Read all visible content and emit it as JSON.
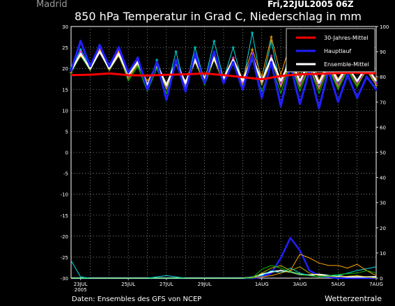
{
  "chart_data": {
    "type": "line",
    "location": "Madrid",
    "date_label": "Fri,22JUL2005 06Z",
    "title": "850 hPa Temperatur in Grad C, Niederschlag in mm",
    "footer_left": "Daten: Ensembles des GFS von NCEP",
    "footer_right": "Wetterzentrale",
    "x_range": [
      0,
      16
    ],
    "x_ticks": [
      {
        "x": 0.5,
        "label": "23JUL",
        "sub": "2005"
      },
      {
        "x": 3,
        "label": "25JUL",
        "sub": ""
      },
      {
        "x": 5,
        "label": "27JUL",
        "sub": ""
      },
      {
        "x": 7,
        "label": "29JUL",
        "sub": ""
      },
      {
        "x": 10,
        "label": "1AUG",
        "sub": ""
      },
      {
        "x": 12,
        "label": "3AUG",
        "sub": ""
      },
      {
        "x": 14,
        "label": "5AUG",
        "sub": ""
      },
      {
        "x": 16,
        "label": "7AUG",
        "sub": ""
      }
    ],
    "y_left": {
      "min": -30,
      "max": 30,
      "step": 5
    },
    "y_right": {
      "min": 0,
      "max": 100,
      "step": 10
    },
    "legend": [
      {
        "label": "30-Jahres-Mittel",
        "color": "#ff0000"
      },
      {
        "label": "Hauptlauf",
        "color": "#0000ff"
      },
      {
        "label": "Ensemble-Mittel",
        "color": "#ffffff"
      }
    ],
    "series": [
      {
        "name": "30-Jahres-Mittel",
        "color": "#ff0000",
        "width": 3,
        "axis": "left",
        "markers": false,
        "x": [
          0,
          1,
          2,
          3,
          4,
          5,
          6,
          7,
          8,
          9,
          10,
          11,
          12,
          13,
          14,
          15,
          16
        ],
        "values": [
          18.4,
          18.5,
          18.8,
          18.4,
          18.3,
          18.5,
          18.6,
          18.8,
          18.4,
          17.9,
          17.4,
          18.2,
          18.6,
          18.7,
          18.9,
          19.0,
          18.8
        ]
      },
      {
        "name": "Hauptlauf",
        "color": "#2020ff",
        "width": 3,
        "axis": "left",
        "markers": true,
        "x": [
          0,
          0.5,
          1,
          1.5,
          2,
          2.5,
          3,
          3.5,
          4,
          4.5,
          5,
          5.5,
          6,
          6.5,
          7,
          7.5,
          8,
          8.5,
          9,
          9.5,
          10,
          10.5,
          11,
          11.5,
          12,
          12.5,
          13,
          13.5,
          14,
          14.5,
          15,
          15.5,
          16
        ],
        "values": [
          19.5,
          26.5,
          20.5,
          25.5,
          20.5,
          25,
          19,
          22.5,
          15,
          21.5,
          12.5,
          22,
          14.5,
          23.5,
          16.5,
          24,
          16.5,
          21.5,
          15,
          23,
          13,
          21.5,
          11,
          21,
          11.5,
          19.5,
          10.5,
          19.5,
          12,
          18.5,
          13,
          18,
          15
        ]
      },
      {
        "name": "Ensemble-Mittel",
        "color": "#ffffff",
        "width": 2.5,
        "axis": "left",
        "markers": false,
        "x": [
          0,
          0.5,
          1,
          1.5,
          2,
          2.5,
          3,
          3.5,
          4,
          4.5,
          5,
          5.5,
          6,
          6.5,
          7,
          7.5,
          8,
          8.5,
          9,
          9.5,
          10,
          10.5,
          11,
          11.5,
          12,
          12.5,
          13,
          13.5,
          14,
          14.5,
          15,
          15.5,
          16
        ],
        "values": [
          19.5,
          23.5,
          20,
          24,
          20,
          23.5,
          18.5,
          21.5,
          16,
          21,
          16,
          21.5,
          16.5,
          22,
          17.5,
          22.5,
          17.5,
          22,
          17,
          22.5,
          17,
          22.5,
          17,
          22,
          17,
          21.5,
          16.5,
          21,
          17,
          20.5,
          17,
          20.5,
          17
        ]
      },
      {
        "name": "",
        "color": "#00c000",
        "width": 1,
        "axis": "left",
        "markers": true,
        "x": [
          0,
          0.5,
          1,
          1.5,
          2,
          2.5,
          3,
          3.5,
          4,
          4.5,
          5,
          5.5,
          6,
          6.5,
          7,
          7.5,
          8,
          8.5,
          9,
          9.5,
          10,
          10.5,
          11,
          11.5,
          12,
          12.5,
          13,
          13.5,
          14,
          14.5,
          15,
          15.5,
          16
        ],
        "values": [
          19,
          23,
          19.5,
          24,
          19.5,
          23.5,
          17,
          20.5,
          14.5,
          20,
          14,
          21.5,
          15.5,
          22,
          16,
          22,
          16.5,
          21,
          15.5,
          22,
          14.5,
          21,
          14,
          21.5,
          14.5,
          20.5,
          14,
          20,
          15,
          19.5,
          15.5,
          20,
          16
        ]
      },
      {
        "name": "",
        "color": "#00e0e0",
        "width": 1,
        "axis": "left",
        "markers": true,
        "x": [
          0,
          0.5,
          1,
          1.5,
          2,
          2.5,
          3,
          3.5,
          4,
          4.5,
          5,
          5.5,
          6,
          6.5,
          7,
          7.5,
          8,
          8.5,
          9,
          9.5,
          10,
          10.5,
          11,
          11.5,
          12,
          12.5,
          13,
          13.5,
          14,
          14.5,
          15,
          15.5,
          16
        ],
        "values": [
          20,
          24.5,
          20.5,
          25.5,
          20.5,
          24,
          18.5,
          22.5,
          15.5,
          22,
          15,
          24,
          15,
          25,
          17,
          26.5,
          17.5,
          25,
          16.5,
          28.5,
          16,
          26.5,
          15.5,
          25,
          16,
          23,
          15.5,
          22.5,
          16,
          21,
          16.5,
          20.5,
          17
        ]
      },
      {
        "name": "",
        "color": "#ffa500",
        "width": 1,
        "axis": "left",
        "markers": true,
        "x": [
          0,
          0.5,
          1,
          1.5,
          2,
          2.5,
          3,
          3.5,
          4,
          4.5,
          5,
          5.5,
          6,
          6.5,
          7,
          7.5,
          8,
          8.5,
          9,
          9.5,
          10,
          10.5,
          11,
          11.5,
          12,
          12.5,
          13,
          13.5,
          14,
          14.5,
          15,
          15.5,
          16
        ],
        "values": [
          19.5,
          23,
          20.5,
          24.5,
          20.5,
          24,
          18,
          21,
          17,
          20.5,
          16.5,
          21,
          17,
          22.5,
          18,
          23,
          18,
          22.5,
          17.5,
          24.5,
          18,
          27.5,
          18.5,
          26,
          18,
          24,
          17,
          22,
          17.5,
          21,
          17,
          20,
          17.5
        ]
      },
      {
        "name": "",
        "color": "#b8b800",
        "width": 1,
        "axis": "left",
        "markers": true,
        "x": [
          0,
          0.5,
          1,
          1.5,
          2,
          2.5,
          3,
          3.5,
          4,
          4.5,
          5,
          5.5,
          6,
          6.5,
          7,
          7.5,
          8,
          8.5,
          9,
          9.5,
          10,
          10.5,
          11,
          11.5,
          12,
          12.5,
          13,
          13.5,
          14,
          14.5,
          15,
          15.5,
          16
        ],
        "values": [
          19,
          23.5,
          19.5,
          24,
          19.5,
          23,
          17.5,
          21,
          16,
          20.5,
          15,
          21,
          15.5,
          21.5,
          16.5,
          22,
          16.5,
          21.5,
          16,
          22.5,
          16,
          22,
          15.5,
          21.5,
          15.5,
          20.5,
          15,
          20.5,
          15.5,
          20,
          16,
          19.5,
          16
        ]
      },
      {
        "name": "",
        "color": "#ff40ff",
        "width": 1,
        "axis": "left",
        "markers": true,
        "x": [
          0,
          0.5,
          1,
          1.5,
          2,
          2.5,
          3,
          3.5,
          4,
          4.5,
          5,
          5.5,
          6,
          6.5,
          7,
          7.5,
          8,
          8.5,
          9,
          9.5,
          10,
          10.5,
          11,
          11.5,
          12,
          12.5,
          13,
          13.5,
          14,
          14.5,
          15,
          15.5,
          16
        ],
        "values": [
          19.5,
          24,
          20,
          25,
          20,
          24.5,
          18,
          22,
          16,
          21.5,
          15.5,
          22,
          16,
          23,
          17,
          23.5,
          17,
          22.5,
          16.5,
          23.5,
          16.5,
          23,
          16,
          22.5,
          16,
          21.5,
          15.5,
          21,
          16,
          20.5,
          16.5,
          20,
          16.5
        ]
      },
      {
        "name": "Niederschlag Hauptlauf",
        "color": "#2020ff",
        "width": 2.5,
        "axis": "right",
        "markers": false,
        "x": [
          0,
          1,
          2,
          3,
          4,
          5,
          6,
          7,
          8,
          9,
          9.5,
          10,
          10.5,
          11,
          11.5,
          12,
          12.5,
          13,
          13.5,
          14,
          15,
          16
        ],
        "values": [
          0,
          0,
          0,
          0,
          0,
          0,
          0,
          0,
          0,
          0,
          0,
          0.5,
          2,
          8,
          16,
          11,
          3,
          1,
          0.5,
          0,
          0,
          0
        ]
      },
      {
        "name": "Niederschlag Ensemble-Mittel",
        "color": "#ffffff",
        "width": 2,
        "axis": "right",
        "markers": false,
        "x": [
          0,
          1,
          2,
          3,
          4,
          5,
          6,
          7,
          8,
          9,
          9.5,
          10,
          10.5,
          11,
          11.5,
          12,
          12.5,
          13,
          13.5,
          14,
          14.5,
          15,
          15.5,
          16
        ],
        "values": [
          0,
          0,
          0,
          0,
          0,
          0,
          0,
          0,
          0,
          0,
          0.3,
          1.5,
          2.5,
          3,
          2.5,
          1.5,
          1.2,
          1.5,
          1,
          0.8,
          0.5,
          0.5,
          0.5,
          0.5
        ]
      },
      {
        "name": "",
        "color": "#00e0e0",
        "width": 1,
        "axis": "right",
        "markers": false,
        "x": [
          0,
          0.5,
          1,
          2,
          3,
          4,
          5,
          6,
          7,
          8,
          9,
          10,
          10.5,
          11,
          11.5,
          12,
          12.5,
          13,
          14,
          15,
          16
        ],
        "values": [
          7,
          0.5,
          0,
          0,
          0,
          0,
          1,
          0,
          0,
          0,
          0,
          1,
          3,
          2,
          4,
          2,
          1,
          0.5,
          1,
          3,
          4.5
        ]
      },
      {
        "name": "",
        "color": "#ffa500",
        "width": 1,
        "axis": "right",
        "markers": false,
        "x": [
          0,
          9,
          10,
          10.5,
          11,
          11.5,
          12,
          12.5,
          13,
          13.5,
          14,
          14.5,
          15,
          15.5,
          16
        ],
        "values": [
          0,
          0,
          0.5,
          1,
          2,
          3,
          9.5,
          8,
          6,
          5,
          5,
          4,
          5.5,
          3,
          1
        ]
      },
      {
        "name": "",
        "color": "#b8b800",
        "width": 1,
        "axis": "right",
        "markers": false,
        "x": [
          0,
          9.5,
          10,
          10.5,
          11,
          11.5,
          12,
          12.5,
          13,
          14,
          15,
          16
        ],
        "values": [
          0,
          0,
          2,
          4,
          5,
          3,
          4.5,
          2,
          1,
          0.5,
          1,
          0
        ]
      },
      {
        "name": "",
        "color": "#00c000",
        "width": 1,
        "axis": "right",
        "markers": false,
        "x": [
          0,
          9.5,
          10,
          10.5,
          11,
          11.5,
          12,
          12.5,
          13,
          14,
          15,
          15.5,
          16
        ],
        "values": [
          0,
          0,
          3.5,
          5,
          4,
          2.5,
          1.5,
          1,
          0.5,
          1.5,
          2,
          3,
          2
        ]
      }
    ]
  }
}
